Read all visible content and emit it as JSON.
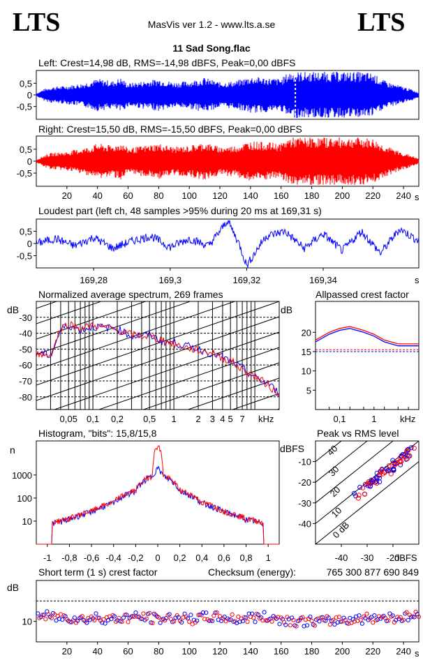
{
  "header": {
    "logo_left": "LTS",
    "logo_right": "LTS",
    "app_title": "MasVis ver 1.2 - www.lts.a.se",
    "file_name": "11 Sad Song.flac"
  },
  "colors": {
    "left": "#0000ff",
    "right": "#ff0000",
    "grid": "#000000"
  },
  "panels": {
    "left_wave": {
      "title": "Left: Crest=14,98 dB, RMS=-14,98 dBFS, Peak=0,00 dBFS",
      "y_ticks": [
        "0,5",
        "0",
        "-0,5"
      ],
      "marker_s": 169.31
    },
    "right_wave": {
      "title": "Right: Crest=15,50 dB, RMS=-15,50 dBFS, Peak=0,00 dBFS",
      "y_ticks": [
        "0,5",
        "0",
        "-0,5"
      ]
    },
    "time_axis": {
      "ticks": [
        "20",
        "40",
        "60",
        "80",
        "100",
        "120",
        "140",
        "160",
        "180",
        "200",
        "220",
        "240"
      ],
      "unit": "s"
    },
    "loudest": {
      "title": "Loudest part (left  ch, 48 samples >95% during 20 ms at 169,31 s)",
      "y_ticks": [
        "0,5",
        "0",
        "-0,5"
      ],
      "x_ticks": [
        "169,28",
        "169,3",
        "169,32",
        "169,34"
      ],
      "unit": "s"
    },
    "spectrum": {
      "title": "Normalized average spectrum, 269 frames",
      "ylabel": "dB",
      "y_ticks": [
        "-30",
        "-40",
        "-50",
        "-60",
        "-70",
        "-80"
      ],
      "x_ticks": [
        "0,05",
        "0,1",
        "0,2",
        "0,5",
        "1",
        "2",
        "3",
        "4",
        "5",
        "7"
      ],
      "unit": "kHz"
    },
    "allpass": {
      "title": "Allpassed crest factor",
      "ylabel": "dB",
      "y_ticks": [
        "20",
        "15",
        "10",
        "5"
      ],
      "x_ticks": [
        "0,1",
        "1"
      ],
      "unit": "kHz"
    },
    "histogram": {
      "title": "Histogram, \"bits\": 15,8/15,8",
      "ylabel": "n",
      "y_ticks": [
        "1000",
        "100",
        "10"
      ],
      "x_ticks": [
        "-1",
        "-0,8",
        "-0,6",
        "-0,4",
        "-0,2",
        "0",
        "0,2",
        "0,4",
        "0,6",
        "0,8",
        "1"
      ]
    },
    "peak_rms": {
      "title": "Peak vs RMS level",
      "ylabel": "dBFS",
      "y_ticks": [
        "-10",
        "-20",
        "-30",
        "-40"
      ],
      "x_ticks": [
        "-40",
        "-30",
        "-20"
      ],
      "x_unit": "dBFS",
      "diag_labels": [
        "40",
        "30",
        "20",
        "10",
        "0 dB"
      ]
    },
    "short_term": {
      "title": "Short term (1 s) crest factor",
      "checksum_label": "Checksum (energy):",
      "checksum_value": "765 300 877 690 849",
      "ylabel": "dB",
      "y_ticks": [
        "10"
      ],
      "x_ticks": [
        "20",
        "40",
        "60",
        "80",
        "100",
        "120",
        "140",
        "160",
        "180",
        "200",
        "220",
        "240"
      ],
      "unit": "s"
    }
  },
  "chart_data": [
    {
      "type": "area",
      "title": "Left: Crest=14,98 dB, RMS=-14,98 dBFS, Peak=0,00 dBFS",
      "xlabel": "s",
      "xlim": [
        0,
        250
      ],
      "ylim": [
        -1,
        1
      ],
      "x": [
        0,
        5,
        10,
        20,
        30,
        35,
        40,
        50,
        55,
        60,
        70,
        80,
        90,
        100,
        110,
        120,
        130,
        140,
        150,
        160,
        165,
        170,
        180,
        190,
        200,
        210,
        220,
        225,
        230,
        240,
        245,
        250
      ],
      "values": [
        0.05,
        0.25,
        0.35,
        0.4,
        0.5,
        0.6,
        0.7,
        0.6,
        0.75,
        0.5,
        0.6,
        0.7,
        0.55,
        0.6,
        0.75,
        0.55,
        0.6,
        0.8,
        0.75,
        0.7,
        1.0,
        1.0,
        1.0,
        1.0,
        1.0,
        1.0,
        0.95,
        0.7,
        0.55,
        0.35,
        0.25,
        0.1
      ]
    },
    {
      "type": "area",
      "title": "Right: Crest=15,50 dB, RMS=-15,50 dBFS, Peak=0,00 dBFS",
      "xlabel": "s",
      "xlim": [
        0,
        250
      ],
      "ylim": [
        -1,
        1
      ],
      "x": [
        0,
        5,
        10,
        20,
        30,
        35,
        40,
        50,
        55,
        60,
        70,
        80,
        90,
        100,
        110,
        120,
        130,
        140,
        150,
        160,
        165,
        170,
        180,
        190,
        200,
        210,
        220,
        225,
        230,
        240,
        245,
        250
      ],
      "values": [
        0.05,
        0.25,
        0.35,
        0.4,
        0.55,
        0.6,
        0.75,
        0.65,
        0.8,
        0.55,
        0.65,
        0.75,
        0.6,
        0.65,
        0.8,
        0.6,
        0.65,
        0.85,
        0.8,
        0.75,
        1.0,
        1.0,
        1.0,
        1.0,
        1.0,
        1.0,
        0.95,
        0.75,
        0.6,
        0.35,
        0.25,
        0.1
      ]
    },
    {
      "type": "line",
      "title": "Loudest part (left  ch, 48 samples >95% during 20 ms at 169,31 s)",
      "xlabel": "s",
      "xlim": [
        169.265,
        169.365
      ],
      "ylim": [
        -0.8,
        0.8
      ],
      "x": [
        169.265,
        169.27,
        169.275,
        169.28,
        169.285,
        169.29,
        169.295,
        169.3,
        169.305,
        169.31,
        169.313,
        169.315,
        169.318,
        169.32,
        169.325,
        169.33,
        169.335,
        169.34,
        169.345,
        169.35,
        169.355,
        169.36,
        169.365
      ],
      "values": [
        0.0,
        0.2,
        -0.1,
        0.25,
        -0.2,
        0.1,
        0.3,
        -0.15,
        0.2,
        -0.1,
        0.5,
        0.95,
        0.0,
        -0.9,
        0.3,
        0.5,
        -0.2,
        0.4,
        -0.3,
        0.5,
        -0.4,
        0.6,
        0.1
      ]
    },
    {
      "type": "line",
      "title": "Normalized average spectrum, 269 frames",
      "xlabel": "kHz",
      "ylabel": "dB",
      "ylim": [
        -88,
        -20
      ],
      "x": [
        0.02,
        0.03,
        0.04,
        0.05,
        0.07,
        0.1,
        0.2,
        0.3,
        0.5,
        0.7,
        1,
        2,
        3,
        4,
        5,
        7,
        10,
        15,
        20
      ],
      "series": [
        {
          "values": [
            -52,
            -54,
            -38,
            -35,
            -38,
            -36,
            -37,
            -42,
            -41,
            -45,
            -46,
            -50,
            -53,
            -55,
            -58,
            -62,
            -68,
            -72,
            -78
          ]
        },
        {
          "values": [
            -53,
            -54,
            -37,
            -34,
            -37,
            -35,
            -38,
            -41,
            -42,
            -44,
            -47,
            -51,
            -52,
            -56,
            -57,
            -63,
            -67,
            -73,
            -79
          ]
        }
      ]
    },
    {
      "type": "line",
      "title": "Allpassed crest factor",
      "xlabel": "kHz",
      "ylabel": "dB",
      "ylim": [
        0,
        28
      ],
      "x": [
        0.02,
        0.05,
        0.1,
        0.2,
        0.5,
        1,
        2,
        5,
        20
      ],
      "series": [
        {
          "values": [
            17.5,
            19.5,
            20.5,
            21,
            20,
            19,
            17.5,
            16.5,
            16.5
          ]
        },
        {
          "values": [
            18,
            20,
            21,
            21.5,
            20.5,
            19.5,
            18,
            17,
            17
          ]
        }
      ]
    },
    {
      "type": "line",
      "title": "Histogram, \"bits\": 15,8/15,8",
      "ylabel": "n",
      "xlim": [
        -1.1,
        1.1
      ],
      "ylim": [
        1,
        30000
      ],
      "x": [
        -1,
        -0.95,
        -0.8,
        -0.6,
        -0.4,
        -0.2,
        -0.05,
        0,
        0.05,
        0.2,
        0.4,
        0.6,
        0.8,
        0.95,
        1
      ],
      "series": [
        {
          "values": [
            2,
            8,
            12,
            25,
            60,
            200,
            900,
            2000,
            900,
            200,
            60,
            25,
            12,
            8,
            2
          ]
        },
        {
          "values": [
            2,
            9,
            13,
            27,
            65,
            220,
            950,
            20000,
            950,
            220,
            65,
            27,
            13,
            9,
            2
          ]
        }
      ]
    },
    {
      "type": "scatter",
      "title": "Peak vs RMS level",
      "xlabel": "dBFS",
      "ylabel": "dBFS",
      "xlim": [
        -50,
        -10
      ],
      "ylim": [
        -50,
        0
      ],
      "x": [
        -34,
        -32,
        -30,
        -29,
        -28,
        -27,
        -26,
        -25,
        -24,
        -23,
        -22,
        -21,
        -20,
        -19,
        -18,
        -17,
        -16,
        -15,
        -14,
        -13
      ],
      "values": [
        -26,
        -24,
        -22,
        -21,
        -20,
        -19,
        -18,
        -17,
        -16,
        -15,
        -14,
        -13,
        -12,
        -11,
        -10,
        -9,
        -8,
        -7,
        -6,
        -5
      ]
    },
    {
      "type": "scatter",
      "title": "Short term (1 s) crest factor",
      "xlabel": "s",
      "ylabel": "dB",
      "xlim": [
        0,
        250
      ],
      "ylim": [
        0,
        30
      ],
      "x": [
        2,
        10,
        20,
        30,
        40,
        50,
        60,
        70,
        80,
        90,
        100,
        110,
        120,
        130,
        140,
        150,
        160,
        170,
        180,
        190,
        200,
        210,
        220,
        230,
        240,
        248
      ],
      "values": [
        13,
        12,
        12,
        11,
        12,
        11,
        12,
        12,
        11,
        12,
        11,
        12,
        12,
        11,
        12,
        12,
        11,
        10,
        10,
        10,
        11,
        11,
        12,
        12,
        12,
        13
      ]
    }
  ]
}
